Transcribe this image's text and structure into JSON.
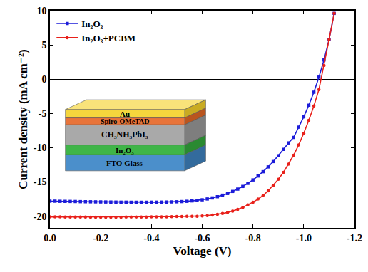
{
  "chart_data": {
    "type": "line",
    "x_label": "Voltage (V)",
    "y_label": "Current density (mA cm⁻²)",
    "x": [
      0,
      -0.02,
      -0.04,
      -0.06,
      -0.08,
      -0.1,
      -0.12,
      -0.14,
      -0.16,
      -0.18,
      -0.2,
      -0.22,
      -0.24,
      -0.26,
      -0.28,
      -0.3,
      -0.32,
      -0.34,
      -0.36,
      -0.38,
      -0.4,
      -0.42,
      -0.44,
      -0.46,
      -0.48,
      -0.5,
      -0.52,
      -0.54,
      -0.56,
      -0.58,
      -0.6,
      -0.62,
      -0.64,
      -0.66,
      -0.68,
      -0.7,
      -0.72,
      -0.74,
      -0.76,
      -0.78,
      -0.8,
      -0.82,
      -0.84,
      -0.86,
      -0.88,
      -0.9,
      -0.92,
      -0.94,
      -0.96,
      -0.98,
      -1.0,
      -1.02,
      -1.04,
      -1.06,
      -1.08,
      -1.1,
      -1.12
    ],
    "series": [
      {
        "name": "In₂O₃",
        "color": "#1c1cd9",
        "marker": "square",
        "line_style": "solid",
        "values": [
          -17.8,
          -17.8,
          -17.82,
          -17.83,
          -17.84,
          -17.85,
          -17.87,
          -17.88,
          -17.89,
          -17.9,
          -17.91,
          -17.92,
          -17.93,
          -17.94,
          -17.95,
          -17.95,
          -17.96,
          -17.96,
          -17.96,
          -17.96,
          -17.95,
          -17.95,
          -17.94,
          -17.93,
          -17.91,
          -17.89,
          -17.86,
          -17.82,
          -17.76,
          -17.69,
          -17.6,
          -17.48,
          -17.33,
          -17.15,
          -16.93,
          -16.68,
          -16.38,
          -16.04,
          -15.65,
          -15.2,
          -14.7,
          -14.13,
          -13.5,
          -12.8,
          -12.02,
          -11.17,
          -10.24,
          -9.3,
          -8.5,
          -7.0,
          -5.5,
          -3.8,
          -1.9,
          0.3,
          2.8,
          5.8,
          9.6
        ]
      },
      {
        "name": "In₂O₃+PCBM",
        "color": "#e8201a",
        "marker": "circle",
        "line_style": "solid",
        "values": [
          -20.1,
          -20.1,
          -20.1,
          -20.11,
          -20.11,
          -20.12,
          -20.12,
          -20.12,
          -20.13,
          -20.13,
          -20.13,
          -20.13,
          -20.13,
          -20.13,
          -20.13,
          -20.12,
          -20.12,
          -20.12,
          -20.11,
          -20.11,
          -20.1,
          -20.1,
          -20.09,
          -20.08,
          -20.07,
          -20.05,
          -20.04,
          -20.02,
          -20.01,
          -20.0,
          -19.96,
          -19.9,
          -19.82,
          -19.72,
          -19.6,
          -19.45,
          -19.25,
          -19.0,
          -18.7,
          -18.35,
          -17.95,
          -17.5,
          -16.95,
          -16.3,
          -15.5,
          -14.6,
          -13.6,
          -12.4,
          -11.1,
          -9.6,
          -7.9,
          -6.0,
          -3.9,
          -1.5,
          2.0,
          5.8,
          9.6
        ]
      }
    ],
    "xlim": [
      0,
      -1.2
    ],
    "xticks": [
      {
        "value": 0,
        "label": "0.0"
      },
      -0.2,
      -0.4,
      -0.6,
      -0.8,
      {
        "value": -1.0,
        "label": "-1.0"
      },
      -1.2
    ],
    "ylim": [
      -21.7,
      10
    ],
    "yticks": [
      -20,
      -15,
      -10,
      -5,
      0,
      5,
      10
    ],
    "grid": false,
    "legend": "upper left",
    "annotations": [
      "Au",
      "Spiro-OMeTAD",
      "CH₃NH₃PbI₃",
      "In₂O₃",
      "FTO Glass"
    ]
  }
}
